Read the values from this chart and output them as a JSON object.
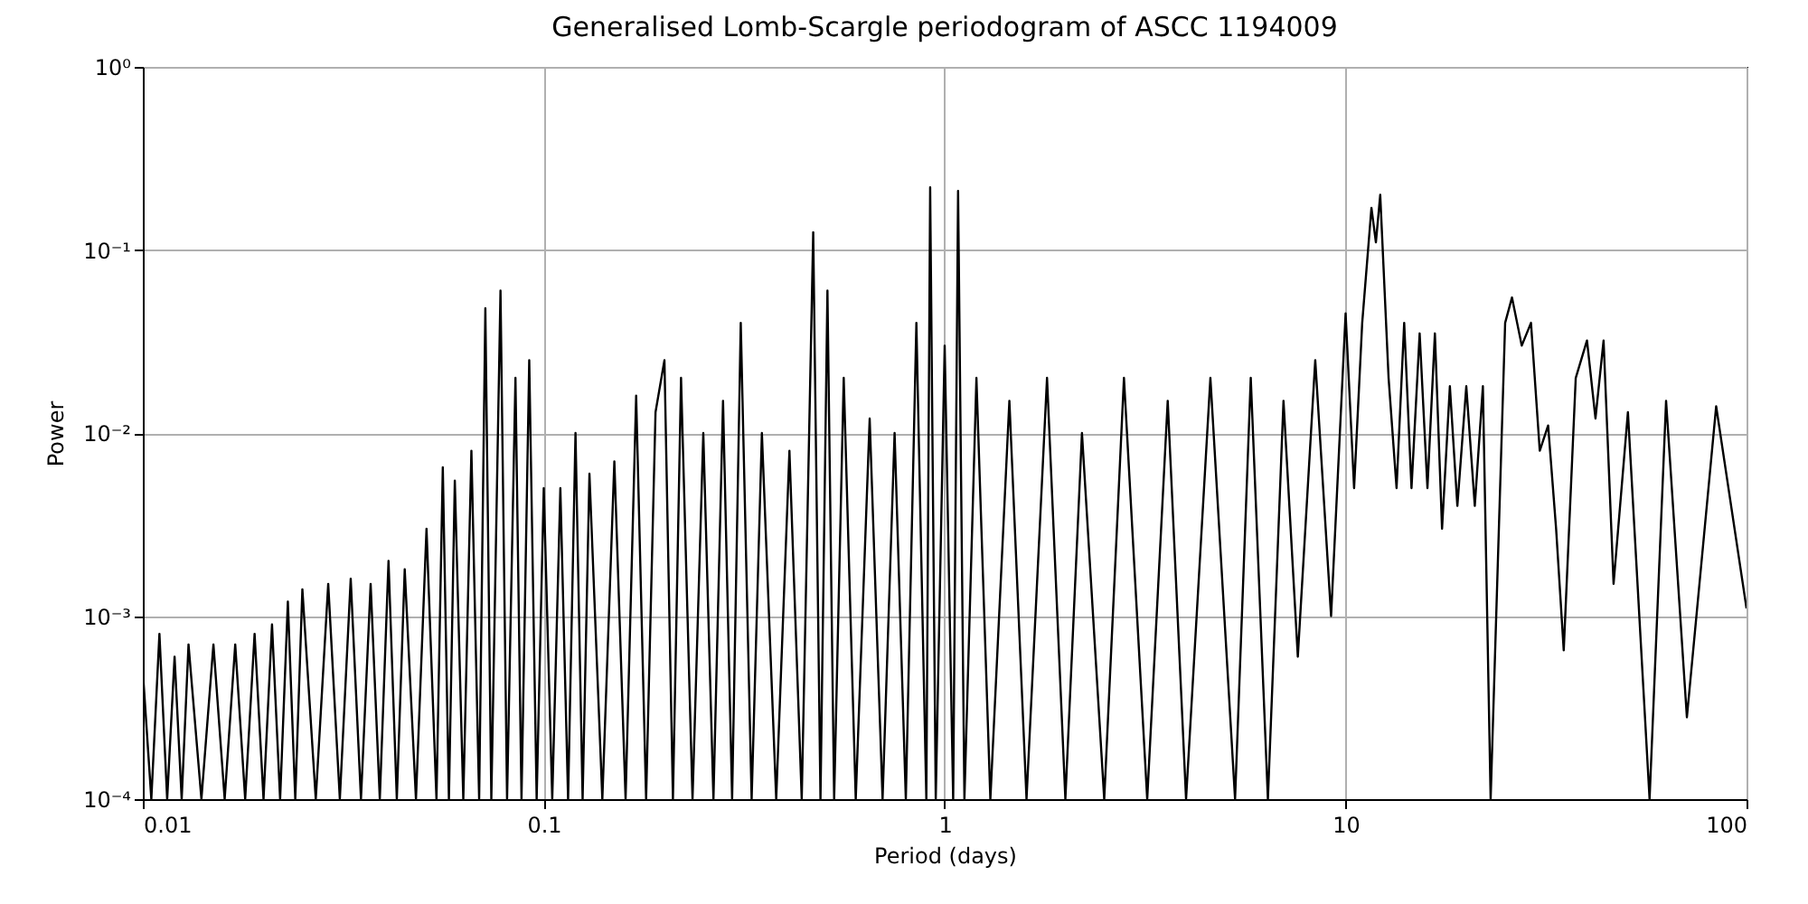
{
  "chart_data": {
    "type": "line",
    "title": "Generalised Lomb-Scargle periodogram of ASCC 1194009",
    "xlabel": "Period (days)",
    "ylabel": "Power",
    "log": "xy",
    "grid": true,
    "marker": "none",
    "line_style": "solid",
    "xlim": [
      0.01,
      100
    ],
    "ylim": [
      0.0001,
      1
    ],
    "xticks": [
      0.01,
      0.1,
      1,
      10,
      100
    ],
    "yticks": [
      {
        "value": 0.0001,
        "label": "10⁻⁴"
      },
      {
        "value": 0.001,
        "label": "10⁻³"
      },
      {
        "value": 0.01,
        "label": "10⁻²"
      },
      {
        "value": 0.1,
        "label": "10⁻¹"
      },
      {
        "value": 1,
        "label": "10⁰"
      }
    ],
    "x": [
      0.01,
      0.0105,
      0.011,
      0.0115,
      0.012,
      0.0125,
      0.013,
      0.014,
      0.015,
      0.016,
      0.017,
      0.018,
      0.019,
      0.02,
      0.021,
      0.022,
      0.023,
      0.024,
      0.025,
      0.027,
      0.029,
      0.031,
      0.033,
      0.035,
      0.037,
      0.039,
      0.041,
      0.043,
      0.045,
      0.048,
      0.051,
      0.054,
      0.056,
      0.058,
      0.06,
      0.063,
      0.066,
      0.069,
      0.0715,
      0.074,
      0.078,
      0.081,
      0.085,
      0.088,
      0.092,
      0.096,
      0.1,
      0.105,
      0.11,
      0.115,
      0.12,
      0.125,
      0.13,
      0.14,
      0.15,
      0.16,
      0.17,
      0.18,
      0.19,
      0.2,
      0.21,
      0.22,
      0.235,
      0.25,
      0.265,
      0.28,
      0.295,
      0.31,
      0.33,
      0.35,
      0.38,
      0.41,
      0.44,
      0.47,
      0.49,
      0.51,
      0.53,
      0.56,
      0.6,
      0.65,
      0.7,
      0.75,
      0.8,
      0.85,
      0.9,
      0.92,
      0.95,
      1.0,
      1.05,
      1.08,
      1.12,
      1.2,
      1.3,
      1.45,
      1.6,
      1.8,
      2.0,
      2.2,
      2.5,
      2.8,
      3.2,
      3.6,
      4.0,
      4.6,
      5.3,
      5.8,
      6.4,
      7.0,
      7.6,
      8.4,
      9.2,
      10.0,
      10.5,
      11.0,
      11.6,
      11.9,
      12.2,
      12.8,
      13.4,
      14.0,
      14.6,
      15.3,
      16.0,
      16.7,
      17.4,
      18.2,
      19.0,
      20.0,
      21.0,
      22.0,
      23.0,
      25.0,
      26.0,
      27.5,
      29.0,
      30.5,
      32.0,
      33.5,
      35.0,
      37.5,
      40.0,
      42.0,
      44.0,
      46.6,
      50.6,
      57.3,
      63.0,
      71.0,
      84.0,
      100.0
    ],
    "values": [
      0.0005,
      0.0001,
      0.0008,
      0.0001,
      0.0006,
      0.0001,
      0.0007,
      0.0001,
      0.0007,
      0.0001,
      0.0007,
      0.0001,
      0.0008,
      0.0001,
      0.0009,
      0.0001,
      0.0012,
      0.0001,
      0.0014,
      0.0001,
      0.0015,
      0.0001,
      0.0016,
      0.0001,
      0.0015,
      0.0001,
      0.002,
      0.0001,
      0.0018,
      0.0001,
      0.003,
      0.0001,
      0.0065,
      0.0001,
      0.0055,
      0.0001,
      0.008,
      0.0001,
      0.048,
      0.0001,
      0.06,
      0.0001,
      0.02,
      0.0001,
      0.025,
      0.0001,
      0.005,
      0.0001,
      0.005,
      0.0001,
      0.01,
      0.0001,
      0.006,
      0.0001,
      0.007,
      0.0001,
      0.016,
      0.0001,
      0.013,
      0.025,
      0.0001,
      0.02,
      0.0001,
      0.01,
      0.0001,
      0.015,
      0.0001,
      0.04,
      0.0001,
      0.01,
      0.0001,
      0.008,
      0.0001,
      0.125,
      0.0001,
      0.06,
      0.0001,
      0.02,
      0.0001,
      0.012,
      0.0001,
      0.01,
      0.0001,
      0.04,
      0.0001,
      0.22,
      0.0001,
      0.03,
      0.0001,
      0.21,
      0.0001,
      0.02,
      0.0001,
      0.015,
      0.0001,
      0.02,
      0.0001,
      0.01,
      0.0001,
      0.02,
      0.0001,
      0.015,
      0.0001,
      0.02,
      0.0001,
      0.02,
      0.0001,
      0.015,
      0.0006,
      0.025,
      0.001,
      0.045,
      0.005,
      0.04,
      0.17,
      0.11,
      0.2,
      0.02,
      0.005,
      0.04,
      0.005,
      0.035,
      0.005,
      0.035,
      0.003,
      0.018,
      0.004,
      0.018,
      0.004,
      0.018,
      0.0001,
      0.04,
      0.055,
      0.03,
      0.04,
      0.008,
      0.011,
      0.003,
      0.00065,
      0.02,
      0.032,
      0.012,
      0.032,
      0.0015,
      0.013,
      0.0001,
      0.015,
      0.00028,
      0.014,
      0.0011
    ],
    "color": "#000000"
  }
}
